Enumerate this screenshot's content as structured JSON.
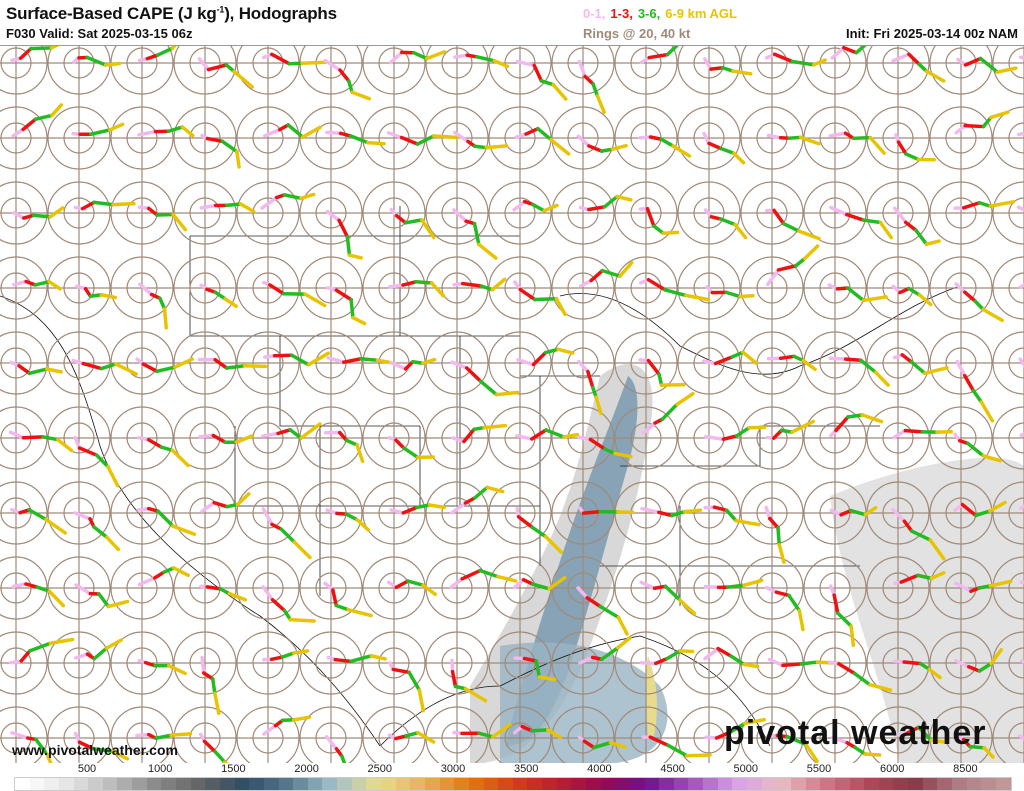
{
  "header": {
    "title": "Surface-Based CAPE (J kg",
    "title_sup": "-1",
    "title_end": "), Hodographs",
    "valid": "F030 Valid: Sat 2025-03-15 06z",
    "legend": [
      {
        "label": "0-1,",
        "color": "#f4b8f0"
      },
      {
        "label": "1-3,",
        "color": "#ee1111"
      },
      {
        "label": "3-6,",
        "color": "#22bb22"
      },
      {
        "label": "6-9 km AGL",
        "color": "#e8c400"
      }
    ],
    "rings": "Rings @ 20, 40 kt",
    "init": "Init: Fri 2025-03-14 00z NAM"
  },
  "map": {
    "ring_color": "#a08a78",
    "cape_colors": [
      "#7a9ab0",
      "#b8c4cc",
      "#d8d8d8"
    ]
  },
  "footer": {
    "url": "www.pivotalweather.com",
    "brand": "pivotal weather"
  },
  "colorbar": {
    "ticks": [
      "500",
      "1000",
      "1500",
      "2000",
      "2500",
      "3000",
      "3500",
      "4000",
      "4500",
      "5000",
      "5500",
      "6000",
      "8500"
    ],
    "stops": [
      "#ffffff",
      "#e6e6e6",
      "#bcbcbc",
      "#8a8a8a",
      "#646464",
      "#2f4d66",
      "#5a7a90",
      "#a2c0cc",
      "#e8dc8c",
      "#e8b060",
      "#e07a10",
      "#d44018",
      "#b82030",
      "#960a50",
      "#72108e",
      "#a050b8",
      "#d8a0e8",
      "#e8bcc4",
      "#d07888",
      "#b04858",
      "#8a3a48",
      "#b07c84",
      "#c09898"
    ]
  }
}
